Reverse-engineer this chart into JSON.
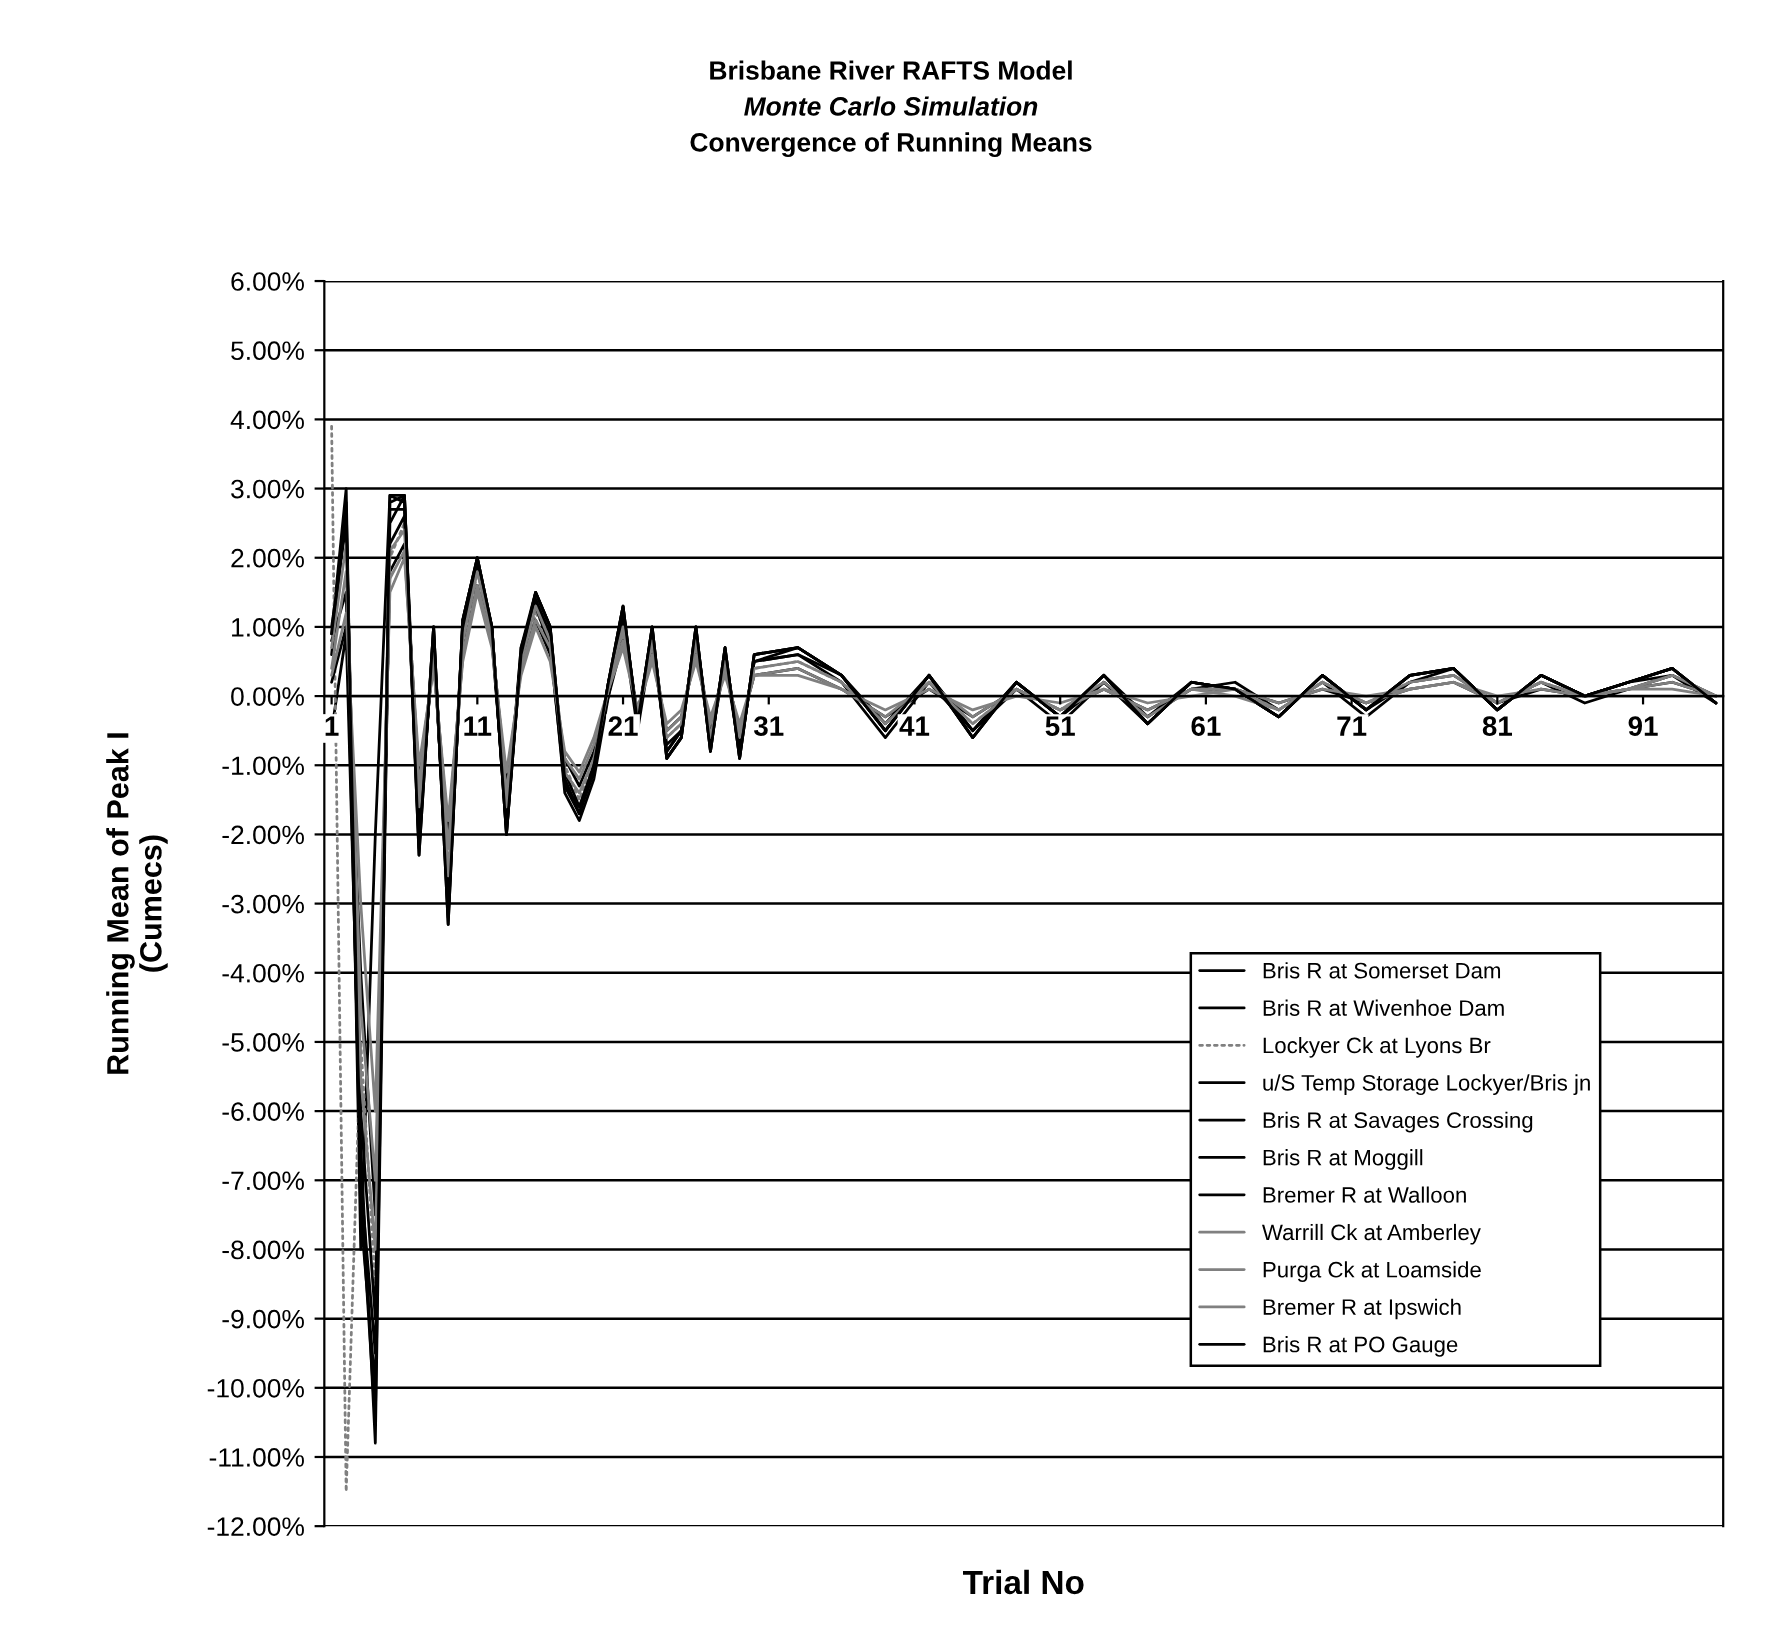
{
  "chart_data": {
    "type": "line",
    "title": "Brisbane River RAFTS Model\nMonte Carlo Simulation\nConvergence of Running Means",
    "xlabel": "Trial No",
    "ylabel": "Running Mean of Peak I\n(Cumecs)",
    "x": [
      1,
      2,
      3,
      4,
      5,
      6,
      7,
      8,
      9,
      10,
      11,
      12,
      13,
      14,
      15,
      16,
      17,
      18,
      19,
      20,
      21,
      22,
      23,
      24,
      25,
      26,
      27,
      28,
      29,
      30,
      33,
      36,
      39,
      42,
      45,
      48,
      51,
      54,
      57,
      60,
      63,
      66,
      69,
      72,
      75,
      78,
      81,
      84,
      87,
      90,
      93,
      96
    ],
    "xlim": [
      0.5,
      96.5
    ],
    "xticks": [
      1,
      11,
      21,
      31,
      41,
      51,
      61,
      71,
      81,
      91
    ],
    "ylim": [
      -12,
      6
    ],
    "yticks": [
      {
        "value": 6,
        "label": "6.00%"
      },
      {
        "value": 5,
        "label": "5.00%"
      },
      {
        "value": 4,
        "label": "4.00%"
      },
      {
        "value": 3,
        "label": "3.00%"
      },
      {
        "value": 2,
        "label": "2.00%"
      },
      {
        "value": 1,
        "label": "1.00%"
      },
      {
        "value": 0,
        "label": "0.00%"
      },
      {
        "value": -1,
        "label": "-1.00%"
      },
      {
        "value": -2,
        "label": "-2.00%"
      },
      {
        "value": -3,
        "label": "-3.00%"
      },
      {
        "value": -4,
        "label": "-4.00%"
      },
      {
        "value": -5,
        "label": "-5.00%"
      },
      {
        "value": -6,
        "label": "-6.00%"
      },
      {
        "value": -7,
        "label": "-7.00%"
      },
      {
        "value": -8,
        "label": "-8.00%"
      },
      {
        "value": -9,
        "label": "-9.00%"
      },
      {
        "value": -10,
        "label": "-10.00%"
      },
      {
        "value": -11,
        "label": "-11.00%"
      },
      {
        "value": -12,
        "label": "-12.00%"
      }
    ],
    "grid": "y",
    "legend": "bottom right",
    "marker": "none",
    "series": [
      {
        "name": "Bris R at Somerset Dam",
        "color": "#000000",
        "line_style": "solid",
        "values": [
          0.9,
          3.0,
          -8.0,
          -2.0,
          2.9,
          2.8,
          -2.3,
          1.0,
          -3.3,
          1.1,
          2.0,
          1.0,
          -2.0,
          0.6,
          1.5,
          1.0,
          -1.2,
          -1.7,
          -1.0,
          0.2,
          1.3,
          -0.4,
          1.0,
          -0.9,
          -0.6,
          1.0,
          -0.8,
          0.7,
          -0.9,
          0.6,
          0.7,
          0.3,
          -0.5,
          0.3,
          -0.6,
          0.2,
          -0.3,
          0.3,
          -0.4,
          0.2,
          0.1,
          -0.3,
          0.3,
          -0.2,
          0.3,
          0.4,
          -0.2,
          0.3,
          0.0,
          0.2,
          0.4,
          -0.1
        ]
      },
      {
        "name": "Bris R at Wivenhoe Dam",
        "color": "#000000",
        "line_style": "solid",
        "values": [
          -0.5,
          0.9,
          -6.5,
          -10.8,
          2.5,
          2.9,
          -2.0,
          0.8,
          -3.0,
          0.9,
          1.9,
          0.8,
          -1.8,
          0.7,
          1.4,
          0.8,
          -1.4,
          -1.8,
          -1.2,
          0.0,
          1.0,
          -0.5,
          0.8,
          -0.8,
          -0.5,
          0.8,
          -0.7,
          0.5,
          -0.8,
          0.5,
          0.6,
          0.2,
          -0.6,
          0.2,
          -0.5,
          0.1,
          -0.4,
          0.2,
          -0.3,
          0.1,
          0.2,
          -0.2,
          0.2,
          -0.3,
          0.2,
          0.3,
          -0.1,
          0.2,
          -0.1,
          0.1,
          0.3,
          0.0
        ]
      },
      {
        "name": "Lockyer Ck at Lyons Br",
        "color": "#808080",
        "line_style": "dotted",
        "values": [
          3.9,
          -11.5,
          -5.0,
          -8.5,
          2.0,
          2.5,
          -1.5,
          0.6,
          -2.5,
          0.7,
          1.8,
          0.9,
          -1.5,
          0.5,
          1.2,
          0.9,
          -1.0,
          -1.5,
          -0.9,
          0.1,
          0.9,
          -0.3,
          0.7,
          -0.6,
          -0.4,
          0.7,
          -0.5,
          0.5,
          -0.6,
          0.4,
          0.5,
          0.2,
          -0.4,
          0.2,
          -0.4,
          0.1,
          -0.2,
          0.2,
          -0.3,
          0.1,
          0.1,
          -0.2,
          0.2,
          -0.1,
          0.2,
          0.3,
          -0.1,
          0.2,
          0.0,
          0.1,
          0.3,
          0.0
        ]
      },
      {
        "name": "u/S Temp Storage Lockyer/Bris jn",
        "color": "#000000",
        "line_style": "solid",
        "values": [
          0.8,
          1.5,
          -7.0,
          -9.5,
          2.2,
          2.6,
          -1.8,
          0.7,
          -2.8,
          1.0,
          1.9,
          1.0,
          -1.9,
          0.6,
          1.3,
          0.7,
          -1.3,
          -1.6,
          -1.1,
          0.2,
          1.1,
          -0.4,
          0.9,
          -0.7,
          -0.5,
          0.9,
          -0.6,
          0.6,
          -0.7,
          0.5,
          0.6,
          0.3,
          -0.5,
          0.3,
          -0.5,
          0.2,
          -0.3,
          0.3,
          -0.3,
          0.2,
          0.1,
          -0.3,
          0.3,
          -0.2,
          0.2,
          0.4,
          -0.2,
          0.3,
          0.0,
          0.2,
          0.3,
          -0.1
        ]
      },
      {
        "name": "Bris R at Savages Crossing",
        "color": "#000000",
        "line_style": "solid",
        "values": [
          0.2,
          1.0,
          -4.0,
          -7.5,
          1.8,
          2.2,
          -1.2,
          0.5,
          -2.0,
          0.6,
          1.6,
          0.8,
          -1.3,
          0.4,
          1.1,
          0.6,
          -0.9,
          -1.3,
          -0.8,
          0.0,
          0.8,
          -0.2,
          0.6,
          -0.5,
          -0.3,
          0.6,
          -0.4,
          0.4,
          -0.5,
          0.3,
          0.4,
          0.1,
          -0.3,
          0.1,
          -0.3,
          0.1,
          -0.2,
          0.1,
          -0.2,
          0.1,
          0.1,
          -0.1,
          0.1,
          -0.1,
          0.1,
          0.2,
          -0.1,
          0.1,
          0.0,
          0.1,
          0.2,
          0.0
        ]
      },
      {
        "name": "Bris R at Moggill",
        "color": "#000000",
        "line_style": "solid",
        "values": [
          1.0,
          2.5,
          -6.0,
          -9.0,
          2.7,
          2.7,
          -2.1,
          0.9,
          -3.1,
          1.0,
          1.9,
          0.9,
          -1.9,
          0.6,
          1.4,
          0.9,
          -1.1,
          -1.6,
          -1.0,
          0.1,
          1.2,
          -0.3,
          0.9,
          -0.8,
          -0.5,
          0.9,
          -0.7,
          0.6,
          -0.8,
          0.5,
          0.7,
          0.3,
          -0.4,
          0.3,
          -0.5,
          0.2,
          -0.3,
          0.2,
          -0.4,
          0.2,
          0.1,
          -0.3,
          0.3,
          -0.2,
          0.3,
          0.4,
          -0.2,
          0.3,
          0.0,
          0.2,
          0.4,
          -0.1
        ]
      },
      {
        "name": "Bremer R at Walloon",
        "color": "#000000",
        "line_style": "solid",
        "values": [
          0.6,
          2.8,
          -7.5,
          -10.0,
          2.8,
          2.9,
          -2.2,
          1.0,
          -3.2,
          1.1,
          2.0,
          1.0,
          -2.0,
          0.7,
          1.5,
          1.0,
          -1.3,
          -1.7,
          -1.1,
          0.2,
          1.3,
          -0.4,
          1.0,
          -0.9,
          -0.6,
          1.0,
          -0.8,
          0.7,
          -0.9,
          0.6,
          0.7,
          0.3,
          -0.5,
          0.3,
          -0.6,
          0.2,
          -0.3,
          0.3,
          -0.4,
          0.2,
          0.1,
          -0.3,
          0.3,
          -0.2,
          0.3,
          0.4,
          -0.2,
          0.3,
          0.0,
          0.2,
          0.4,
          -0.1
        ]
      },
      {
        "name": "Warrill Ck at Amberley",
        "color": "#808080",
        "line_style": "solid",
        "values": [
          0.3,
          1.2,
          -3.0,
          -6.0,
          1.5,
          2.0,
          -1.0,
          0.4,
          -1.8,
          0.5,
          1.5,
          0.7,
          -1.1,
          0.3,
          1.0,
          0.5,
          -0.8,
          -1.1,
          -0.6,
          0.1,
          0.7,
          -0.2,
          0.5,
          -0.4,
          -0.2,
          0.5,
          -0.3,
          0.3,
          -0.4,
          0.3,
          0.3,
          0.1,
          -0.2,
          0.1,
          -0.2,
          0.0,
          -0.1,
          0.1,
          -0.1,
          0.0,
          0.1,
          -0.1,
          0.1,
          0.0,
          0.1,
          0.2,
          0.0,
          0.1,
          0.0,
          0.1,
          0.1,
          0.0
        ]
      },
      {
        "name": "Purga Ck at Loamside",
        "color": "#808080",
        "line_style": "solid",
        "values": [
          0.4,
          1.8,
          -4.5,
          -7.0,
          1.7,
          2.1,
          -1.3,
          0.5,
          -2.2,
          0.6,
          1.6,
          0.8,
          -1.4,
          0.4,
          1.1,
          0.7,
          -0.9,
          -1.2,
          -0.7,
          0.1,
          0.8,
          -0.2,
          0.6,
          -0.5,
          -0.3,
          0.6,
          -0.4,
          0.4,
          -0.5,
          0.3,
          0.4,
          0.1,
          -0.3,
          0.2,
          -0.3,
          0.1,
          -0.2,
          0.1,
          -0.2,
          0.1,
          0.0,
          -0.2,
          0.2,
          -0.1,
          0.1,
          0.2,
          -0.1,
          0.2,
          0.0,
          0.1,
          0.2,
          0.0
        ]
      },
      {
        "name": "Bremer R at Ipswich",
        "color": "#808080",
        "line_style": "solid",
        "values": [
          0.7,
          2.2,
          -5.5,
          -8.0,
          2.1,
          2.4,
          -1.6,
          0.7,
          -2.6,
          0.8,
          1.8,
          0.9,
          -1.6,
          0.5,
          1.3,
          0.8,
          -1.1,
          -1.4,
          -0.9,
          0.1,
          1.0,
          -0.3,
          0.8,
          -0.6,
          -0.4,
          0.8,
          -0.6,
          0.5,
          -0.6,
          0.4,
          0.5,
          0.2,
          -0.4,
          0.2,
          -0.4,
          0.1,
          -0.2,
          0.2,
          -0.3,
          0.1,
          0.1,
          -0.2,
          0.2,
          -0.1,
          0.2,
          0.3,
          -0.1,
          0.2,
          0.0,
          0.1,
          0.3,
          0.0
        ]
      },
      {
        "name": "Bris R at PO Gauge",
        "color": "#000000",
        "line_style": "solid",
        "values": [
          0.9,
          2.6,
          -7.2,
          -10.5,
          2.9,
          2.9,
          -2.3,
          1.0,
          -3.3,
          1.1,
          2.0,
          1.0,
          -2.0,
          0.6,
          1.5,
          1.0,
          -1.2,
          -1.7,
          -1.0,
          0.2,
          1.3,
          -0.4,
          1.0,
          -0.9,
          -0.6,
          1.0,
          -0.8,
          0.7,
          -0.9,
          0.6,
          0.7,
          0.3,
          -0.5,
          0.3,
          -0.6,
          0.2,
          -0.3,
          0.3,
          -0.4,
          0.2,
          0.1,
          -0.3,
          0.3,
          -0.2,
          0.3,
          0.4,
          -0.2,
          0.3,
          0.0,
          0.2,
          0.4,
          -0.1
        ]
      }
    ]
  }
}
